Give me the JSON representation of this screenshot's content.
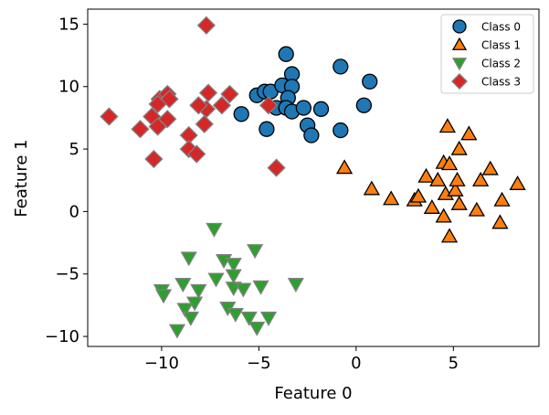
{
  "chart_data": {
    "type": "scatter",
    "title": "",
    "xlabel": "Feature 0",
    "ylabel": "Feature 1",
    "xlim": [
      -13.8,
      9.4
    ],
    "ylim": [
      -10.8,
      16.2
    ],
    "xticks": [
      -10,
      -5,
      0,
      5
    ],
    "yticks": [
      -10,
      -5,
      0,
      5,
      10,
      15
    ],
    "grid": false,
    "legend_position": "top-right",
    "series": [
      {
        "name": "Class 0",
        "marker": "circle",
        "color": "#1f77b4",
        "edge": "#000000",
        "points": [
          [
            -5.9,
            7.8
          ],
          [
            -5.1,
            9.3
          ],
          [
            -4.7,
            9.6
          ],
          [
            -4.4,
            9.6
          ],
          [
            -4.6,
            6.6
          ],
          [
            -4.1,
            8.3
          ],
          [
            -3.6,
            12.6
          ],
          [
            -3.3,
            11.0
          ],
          [
            -3.8,
            10.1
          ],
          [
            -3.3,
            10.0
          ],
          [
            -3.5,
            9.1
          ],
          [
            -3.6,
            8.3
          ],
          [
            -3.3,
            8.0
          ],
          [
            -2.7,
            8.3
          ],
          [
            -2.5,
            6.9
          ],
          [
            -2.3,
            6.1
          ],
          [
            -1.8,
            8.2
          ],
          [
            -0.8,
            11.6
          ],
          [
            -0.8,
            6.5
          ],
          [
            0.7,
            10.4
          ],
          [
            0.4,
            8.5
          ]
        ]
      },
      {
        "name": "Class 1",
        "marker": "triangle-up",
        "color": "#ff7f0e",
        "edge": "#000000",
        "points": [
          [
            -0.6,
            3.5
          ],
          [
            0.8,
            1.8
          ],
          [
            1.8,
            1.0
          ],
          [
            3.0,
            0.9
          ],
          [
            3.2,
            1.2
          ],
          [
            3.6,
            2.8
          ],
          [
            3.9,
            0.3
          ],
          [
            4.2,
            2.5
          ],
          [
            4.5,
            3.9
          ],
          [
            4.5,
            -0.4
          ],
          [
            4.6,
            1.4
          ],
          [
            4.7,
            6.8
          ],
          [
            4.8,
            3.8
          ],
          [
            4.8,
            -2.0
          ],
          [
            5.1,
            1.7
          ],
          [
            5.2,
            2.5
          ],
          [
            5.3,
            0.6
          ],
          [
            5.3,
            5.0
          ],
          [
            5.8,
            6.2
          ],
          [
            6.2,
            0.1
          ],
          [
            6.4,
            2.5
          ],
          [
            6.9,
            3.4
          ],
          [
            7.4,
            -0.9
          ],
          [
            7.5,
            0.9
          ],
          [
            8.3,
            2.2
          ]
        ]
      },
      {
        "name": "Class 2",
        "marker": "triangle-down",
        "color": "#2ca02c",
        "edge": "#808080",
        "points": [
          [
            -7.3,
            -1.4
          ],
          [
            -5.2,
            -3.1
          ],
          [
            -8.6,
            -3.7
          ],
          [
            -6.8,
            -3.9
          ],
          [
            -6.3,
            -4.2
          ],
          [
            -7.2,
            -5.4
          ],
          [
            -6.3,
            -5.1
          ],
          [
            -8.9,
            -5.8
          ],
          [
            -10.0,
            -6.3
          ],
          [
            -9.9,
            -6.7
          ],
          [
            -8.1,
            -6.3
          ],
          [
            -6.3,
            -6.1
          ],
          [
            -5.8,
            -6.2
          ],
          [
            -4.9,
            -6.0
          ],
          [
            -3.1,
            -5.8
          ],
          [
            -8.3,
            -7.3
          ],
          [
            -8.8,
            -7.8
          ],
          [
            -8.5,
            -8.5
          ],
          [
            -6.6,
            -7.7
          ],
          [
            -6.2,
            -8.2
          ],
          [
            -5.5,
            -8.5
          ],
          [
            -4.5,
            -8.5
          ],
          [
            -5.1,
            -9.3
          ],
          [
            -9.2,
            -9.5
          ]
        ]
      },
      {
        "name": "Class 3",
        "marker": "diamond",
        "color": "#d62728",
        "edge": "#808080",
        "points": [
          [
            -12.7,
            7.6
          ],
          [
            -7.7,
            14.9
          ],
          [
            -11.1,
            6.6
          ],
          [
            -10.4,
            4.2
          ],
          [
            -10.5,
            7.6
          ],
          [
            -10.2,
            6.8
          ],
          [
            -9.7,
            7.4
          ],
          [
            -10.1,
            9.0
          ],
          [
            -9.7,
            9.4
          ],
          [
            -9.6,
            9.0
          ],
          [
            -10.2,
            8.6
          ],
          [
            -8.6,
            6.1
          ],
          [
            -8.6,
            5.0
          ],
          [
            -8.2,
            4.6
          ],
          [
            -7.8,
            7.0
          ],
          [
            -7.7,
            8.2
          ],
          [
            -8.1,
            8.5
          ],
          [
            -7.6,
            9.5
          ],
          [
            -6.9,
            8.5
          ],
          [
            -6.5,
            9.4
          ],
          [
            -4.5,
            8.5
          ],
          [
            -4.1,
            3.5
          ]
        ]
      }
    ]
  }
}
